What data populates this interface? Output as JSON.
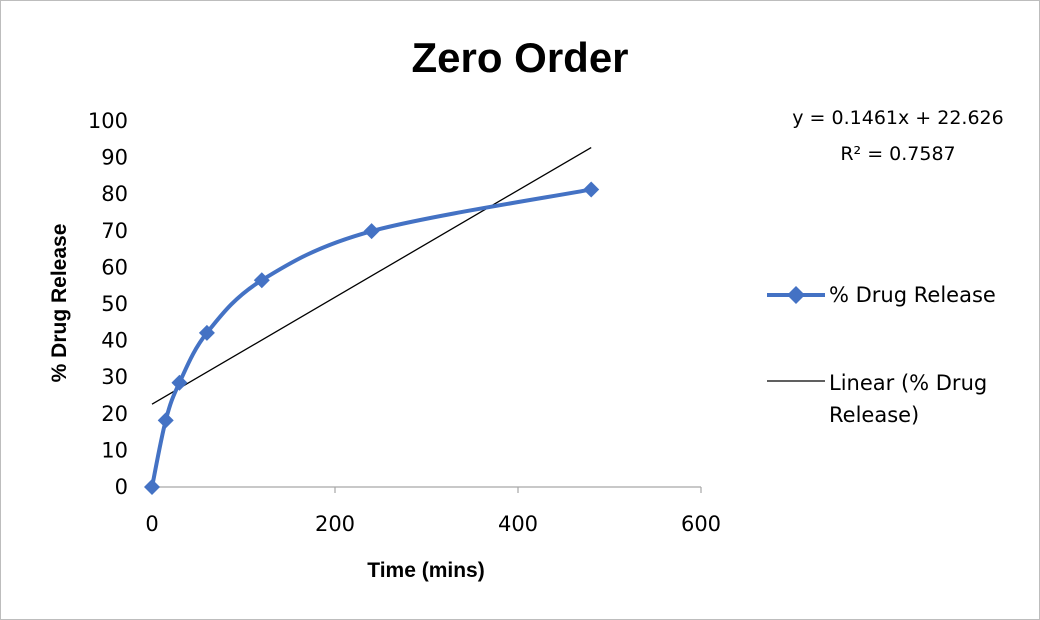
{
  "chart_data": {
    "type": "scatter",
    "title": "Zero Order",
    "xlabel": "Time (mins)",
    "ylabel": "% Drug Release",
    "xlim": [
      0,
      600
    ],
    "ylim": [
      0,
      100
    ],
    "xticks": [
      "0",
      "200",
      "400",
      "600"
    ],
    "yticks": [
      "0",
      "10",
      "20",
      "30",
      "40",
      "50",
      "60",
      "70",
      "80",
      "90",
      "100"
    ],
    "grid": false,
    "legend_position": "right",
    "series": [
      {
        "name": "% Drug Release",
        "style": "smoothed line with diamond markers",
        "color": "#4472C4",
        "x": [
          0,
          15,
          30,
          60,
          120,
          240,
          480
        ],
        "y": [
          0,
          18.2,
          28.5,
          42.1,
          56.5,
          69.9,
          81.3
        ]
      }
    ],
    "trendline": {
      "name": "Linear (% Drug Release)",
      "name_lines": [
        "Linear (% Drug",
        "Release)"
      ],
      "color": "#000000",
      "slope": 0.1461,
      "intercept": 22.626,
      "x_range": [
        0,
        480
      ],
      "equation": "y = 0.1461x + 22.626",
      "r_squared": "R² = 0.7587"
    }
  }
}
